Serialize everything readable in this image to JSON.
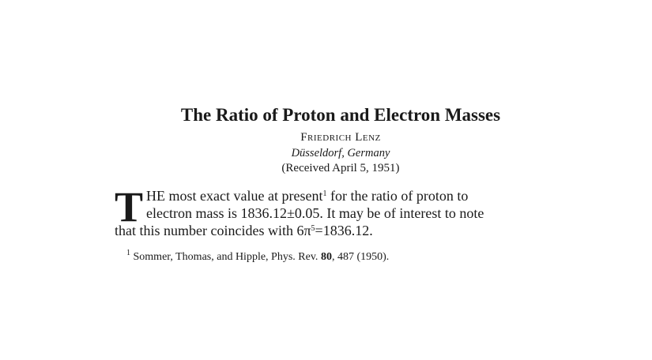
{
  "article": {
    "title": "The Ratio of Proton and Electron Masses",
    "author": "Friedrich Lenz",
    "affiliation": "Düsseldorf, Germany",
    "received": "(Received April 5, 1951)",
    "body": {
      "drop_cap": "T",
      "line1": "HE most exact value at present",
      "line1_ref": "1",
      "line1_rest": " for the ratio of proton to",
      "line2": "electron mass is 1836.12±0.05. It may be of interest to note",
      "line3_pre": "that this number coincides with 6π",
      "line3_exp": "5",
      "line3_post": "=1836.12."
    },
    "footnote": {
      "marker": "1",
      "text": " Sommer, Thomas, and Hipple, Phys. Rev. ",
      "volume": "80",
      "rest": ", 487 (1950)."
    }
  }
}
